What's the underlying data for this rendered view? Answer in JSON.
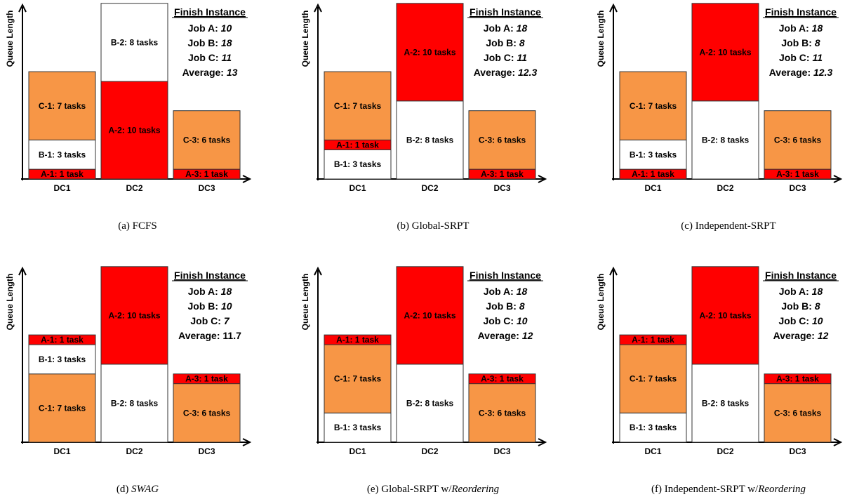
{
  "colors": {
    "red": "#ff0000",
    "orange": "#f79646",
    "white": "#ffffff"
  },
  "y_axis_label": "Queue Length",
  "dc_labels": [
    "DC1",
    "DC2",
    "DC3"
  ],
  "finish_title": "Finish Instance",
  "panels": [
    {
      "caption_prefix": "(a)  ",
      "caption": "FCFS",
      "caption_suffix": "",
      "caption_italic": false,
      "stacks": [
        [
          {
            "label": "A-1: 1 task",
            "size": 1,
            "color": "red"
          },
          {
            "label": "B-1: 3 tasks",
            "size": 3,
            "color": "white"
          },
          {
            "label": "C-1: 7 tasks",
            "size": 7,
            "color": "orange"
          }
        ],
        [
          {
            "label": "A-2: 10 tasks",
            "size": 10,
            "color": "red"
          },
          {
            "label": "B-2: 8 tasks",
            "size": 8,
            "color": "white"
          }
        ],
        [
          {
            "label": "A-3: 1 task",
            "size": 1,
            "color": "red"
          },
          {
            "label": "C-3: 6 tasks",
            "size": 6,
            "color": "orange"
          }
        ]
      ],
      "finish": [
        {
          "label": "Job A: ",
          "value": "10",
          "italic": true
        },
        {
          "label": "Job B: ",
          "value": "18",
          "italic": true
        },
        {
          "label": "Job C: ",
          "value": "11",
          "italic": true
        },
        {
          "label": "Average: ",
          "value": "13",
          "italic": true
        }
      ]
    },
    {
      "caption_prefix": "(b)  ",
      "caption": "Global-SRPT",
      "caption_suffix": "",
      "caption_italic": false,
      "stacks": [
        [
          {
            "label": "B-1: 3 tasks",
            "size": 3,
            "color": "white"
          },
          {
            "label": "A-1: 1 task",
            "size": 1,
            "color": "red"
          },
          {
            "label": "C-1: 7 tasks",
            "size": 7,
            "color": "orange"
          }
        ],
        [
          {
            "label": "B-2: 8 tasks",
            "size": 8,
            "color": "white"
          },
          {
            "label": "A-2: 10 tasks",
            "size": 10,
            "color": "red"
          }
        ],
        [
          {
            "label": "A-3: 1 task",
            "size": 1,
            "color": "red"
          },
          {
            "label": "C-3: 6 tasks",
            "size": 6,
            "color": "orange"
          }
        ]
      ],
      "finish": [
        {
          "label": "Job A: ",
          "value": "18",
          "italic": true
        },
        {
          "label": "Job B: ",
          "value": "8",
          "italic": true
        },
        {
          "label": "Job C: ",
          "value": "11",
          "italic": true
        },
        {
          "label": "Average: ",
          "value": "12.3",
          "italic": true
        }
      ]
    },
    {
      "caption_prefix": "(c)  ",
      "caption": "Independent-SRPT",
      "caption_suffix": "",
      "caption_italic": false,
      "stacks": [
        [
          {
            "label": "A-1: 1 task",
            "size": 1,
            "color": "red"
          },
          {
            "label": "B-1: 3 tasks",
            "size": 3,
            "color": "white"
          },
          {
            "label": "C-1: 7 tasks",
            "size": 7,
            "color": "orange"
          }
        ],
        [
          {
            "label": "B-2: 8 tasks",
            "size": 8,
            "color": "white"
          },
          {
            "label": "A-2: 10 tasks",
            "size": 10,
            "color": "red"
          }
        ],
        [
          {
            "label": "A-3: 1 task",
            "size": 1,
            "color": "red"
          },
          {
            "label": "C-3: 6 tasks",
            "size": 6,
            "color": "orange"
          }
        ]
      ],
      "finish": [
        {
          "label": "Job A: ",
          "value": "18",
          "italic": true
        },
        {
          "label": "Job B: ",
          "value": "8",
          "italic": true
        },
        {
          "label": "Job C: ",
          "value": "11",
          "italic": true
        },
        {
          "label": "Average: ",
          "value": "12.3",
          "italic": true
        }
      ]
    },
    {
      "caption_prefix": "(d)  ",
      "caption": "SWAG",
      "caption_suffix": "",
      "caption_italic": true,
      "stacks": [
        [
          {
            "label": "C-1: 7 tasks",
            "size": 7,
            "color": "orange"
          },
          {
            "label": "B-1: 3 tasks",
            "size": 3,
            "color": "white"
          },
          {
            "label": "A-1: 1 task",
            "size": 1,
            "color": "red"
          }
        ],
        [
          {
            "label": "B-2: 8 tasks",
            "size": 8,
            "color": "white"
          },
          {
            "label": "A-2: 10 tasks",
            "size": 10,
            "color": "red"
          }
        ],
        [
          {
            "label": "C-3: 6 tasks",
            "size": 6,
            "color": "orange"
          },
          {
            "label": "A-3: 1 task",
            "size": 1,
            "color": "red"
          }
        ]
      ],
      "finish": [
        {
          "label": "Job A: ",
          "value": "18",
          "italic": true
        },
        {
          "label": "Job B: ",
          "value": "10",
          "italic": true
        },
        {
          "label": "Job C: ",
          "value": "7",
          "italic": true
        },
        {
          "label": "Average: ",
          "value": "11.7",
          "italic": false
        }
      ]
    },
    {
      "caption_prefix": "(e)  ",
      "caption": "Global-SRPT w/",
      "caption_suffix": "Reordering",
      "caption_italic": false,
      "stacks": [
        [
          {
            "label": "B-1: 3 tasks",
            "size": 3,
            "color": "white"
          },
          {
            "label": "C-1: 7 tasks",
            "size": 7,
            "color": "orange"
          },
          {
            "label": "A-1: 1 task",
            "size": 1,
            "color": "red"
          }
        ],
        [
          {
            "label": "B-2: 8 tasks",
            "size": 8,
            "color": "white"
          },
          {
            "label": "A-2: 10 tasks",
            "size": 10,
            "color": "red"
          }
        ],
        [
          {
            "label": "C-3: 6 tasks",
            "size": 6,
            "color": "orange"
          },
          {
            "label": "A-3: 1 task",
            "size": 1,
            "color": "red"
          }
        ]
      ],
      "finish": [
        {
          "label": "Job A: ",
          "value": "18",
          "italic": true
        },
        {
          "label": "Job B: ",
          "value": "8",
          "italic": true
        },
        {
          "label": "Job C: ",
          "value": "10",
          "italic": true
        },
        {
          "label": "Average: ",
          "value": "12",
          "italic": true
        }
      ]
    },
    {
      "caption_prefix": "(f)  ",
      "caption": "Independent-SRPT w/",
      "caption_suffix": "Reordering",
      "caption_italic": false,
      "stacks": [
        [
          {
            "label": "B-1: 3 tasks",
            "size": 3,
            "color": "white"
          },
          {
            "label": "C-1: 7 tasks",
            "size": 7,
            "color": "orange"
          },
          {
            "label": "A-1: 1 task",
            "size": 1,
            "color": "red"
          }
        ],
        [
          {
            "label": "B-2: 8 tasks",
            "size": 8,
            "color": "white"
          },
          {
            "label": "A-2: 10 tasks",
            "size": 10,
            "color": "red"
          }
        ],
        [
          {
            "label": "C-3: 6 tasks",
            "size": 6,
            "color": "orange"
          },
          {
            "label": "A-3: 1 task",
            "size": 1,
            "color": "red"
          }
        ]
      ],
      "finish": [
        {
          "label": "Job A: ",
          "value": "18",
          "italic": true
        },
        {
          "label": "Job B: ",
          "value": "8",
          "italic": true
        },
        {
          "label": "Job C: ",
          "value": "10",
          "italic": true
        },
        {
          "label": "Average: ",
          "value": "12",
          "italic": true
        }
      ]
    }
  ]
}
